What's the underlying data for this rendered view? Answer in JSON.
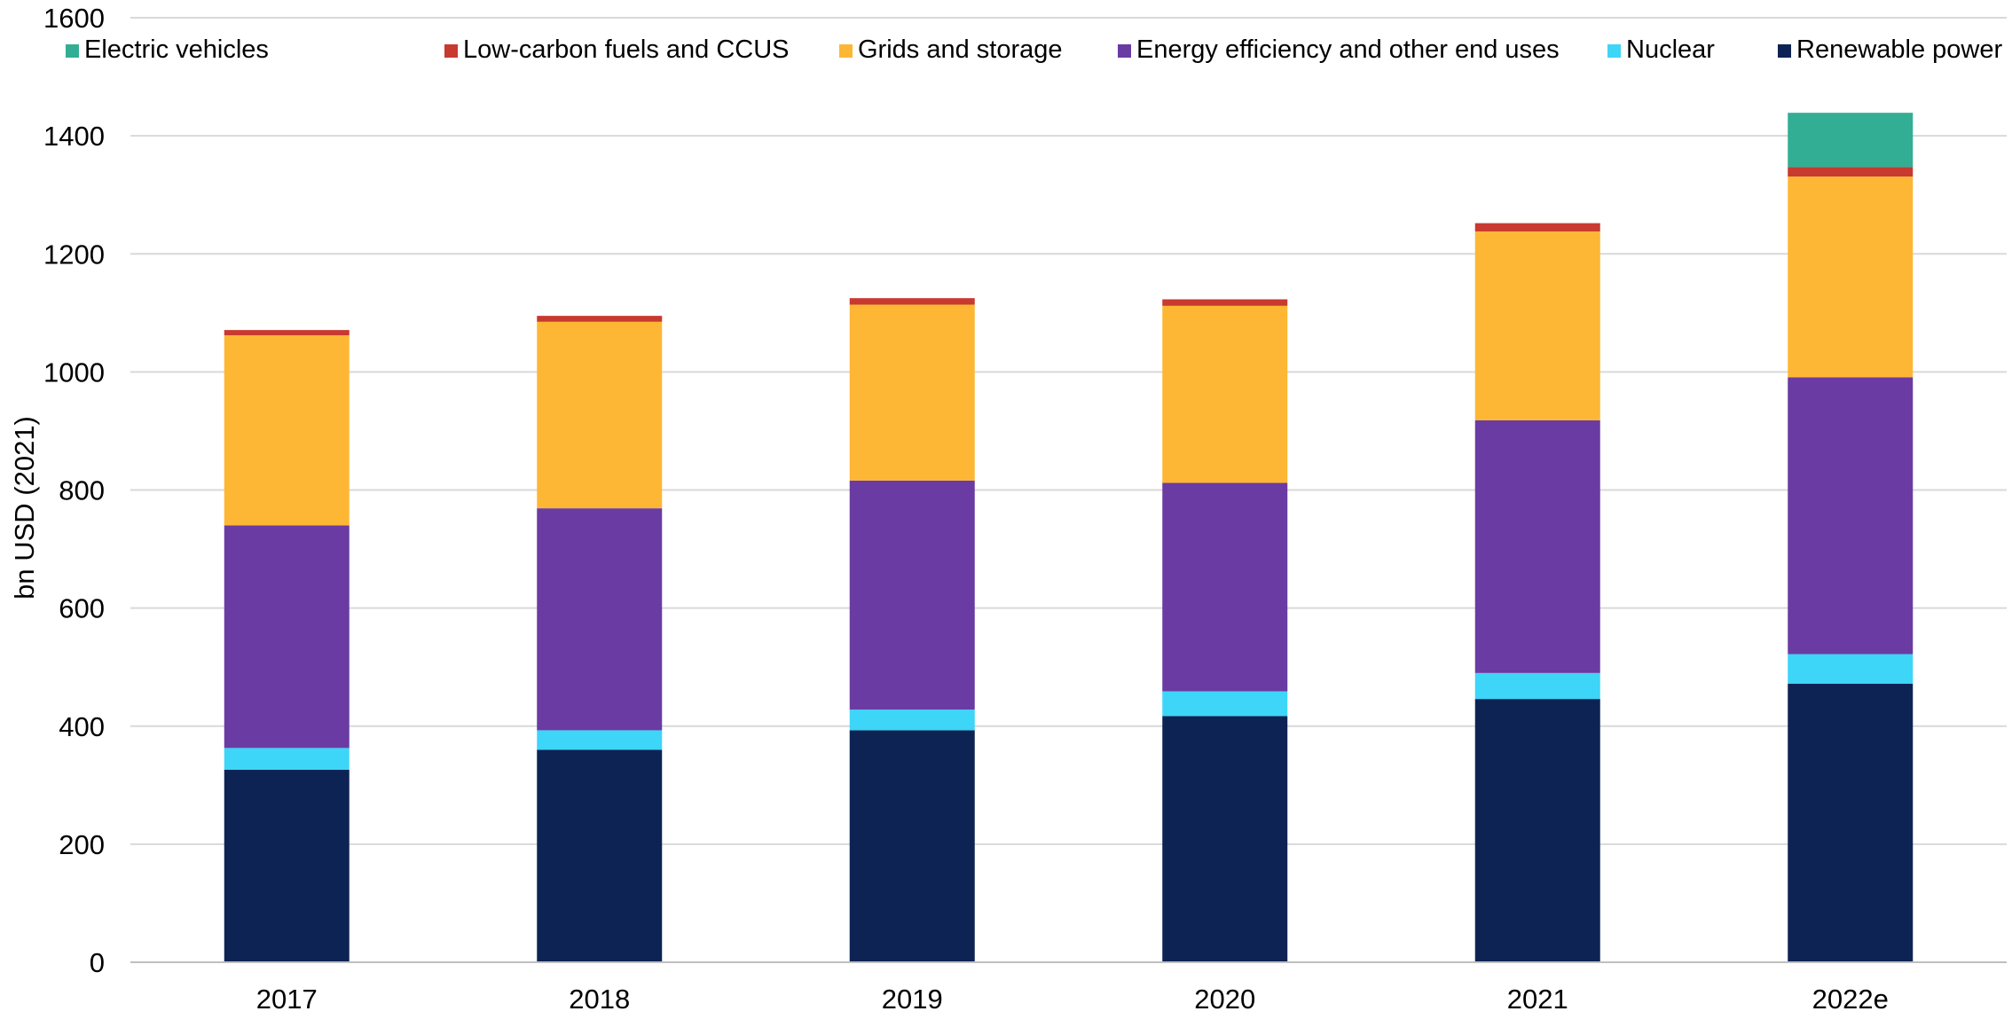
{
  "chart_data": {
    "type": "bar",
    "stacked": true,
    "categories": [
      "2017",
      "2018",
      "2019",
      "2020",
      "2021",
      "2022e"
    ],
    "ylabel": "bn USD (2021)",
    "ylim": [
      0,
      1600
    ],
    "yticks": [
      "0",
      "200",
      "400",
      "600",
      "800",
      "1000",
      "1200",
      "1400",
      "1600"
    ],
    "grid": true,
    "legend_position": "top",
    "series": [
      {
        "name": "Renewable power",
        "color": "#0d2354",
        "values": [
          326,
          360,
          393,
          417,
          446,
          472
        ]
      },
      {
        "name": "Nuclear",
        "color": "#3dd5f8",
        "values": [
          37,
          33,
          35,
          42,
          44,
          50
        ]
      },
      {
        "name": "Energy efficiency and other end uses",
        "color": "#6a3ba2",
        "values": [
          377,
          376,
          388,
          353,
          428,
          469
        ]
      },
      {
        "name": "Grids and storage",
        "color": "#fdb734",
        "values": [
          322,
          316,
          298,
          300,
          320,
          340
        ]
      },
      {
        "name": "Low-carbon fuels and CCUS",
        "color": "#c8392f",
        "values": [
          9,
          10,
          11,
          11,
          14,
          16
        ]
      },
      {
        "name": "Electric vehicles",
        "color": "#32ae94",
        "values": [
          0,
          0,
          0,
          0,
          0,
          92
        ]
      }
    ],
    "legend_order": [
      "Electric vehicles",
      "Low-carbon fuels and CCUS",
      "Grids and storage",
      "Energy efficiency and other end uses",
      "Nuclear",
      "Renewable power"
    ]
  }
}
